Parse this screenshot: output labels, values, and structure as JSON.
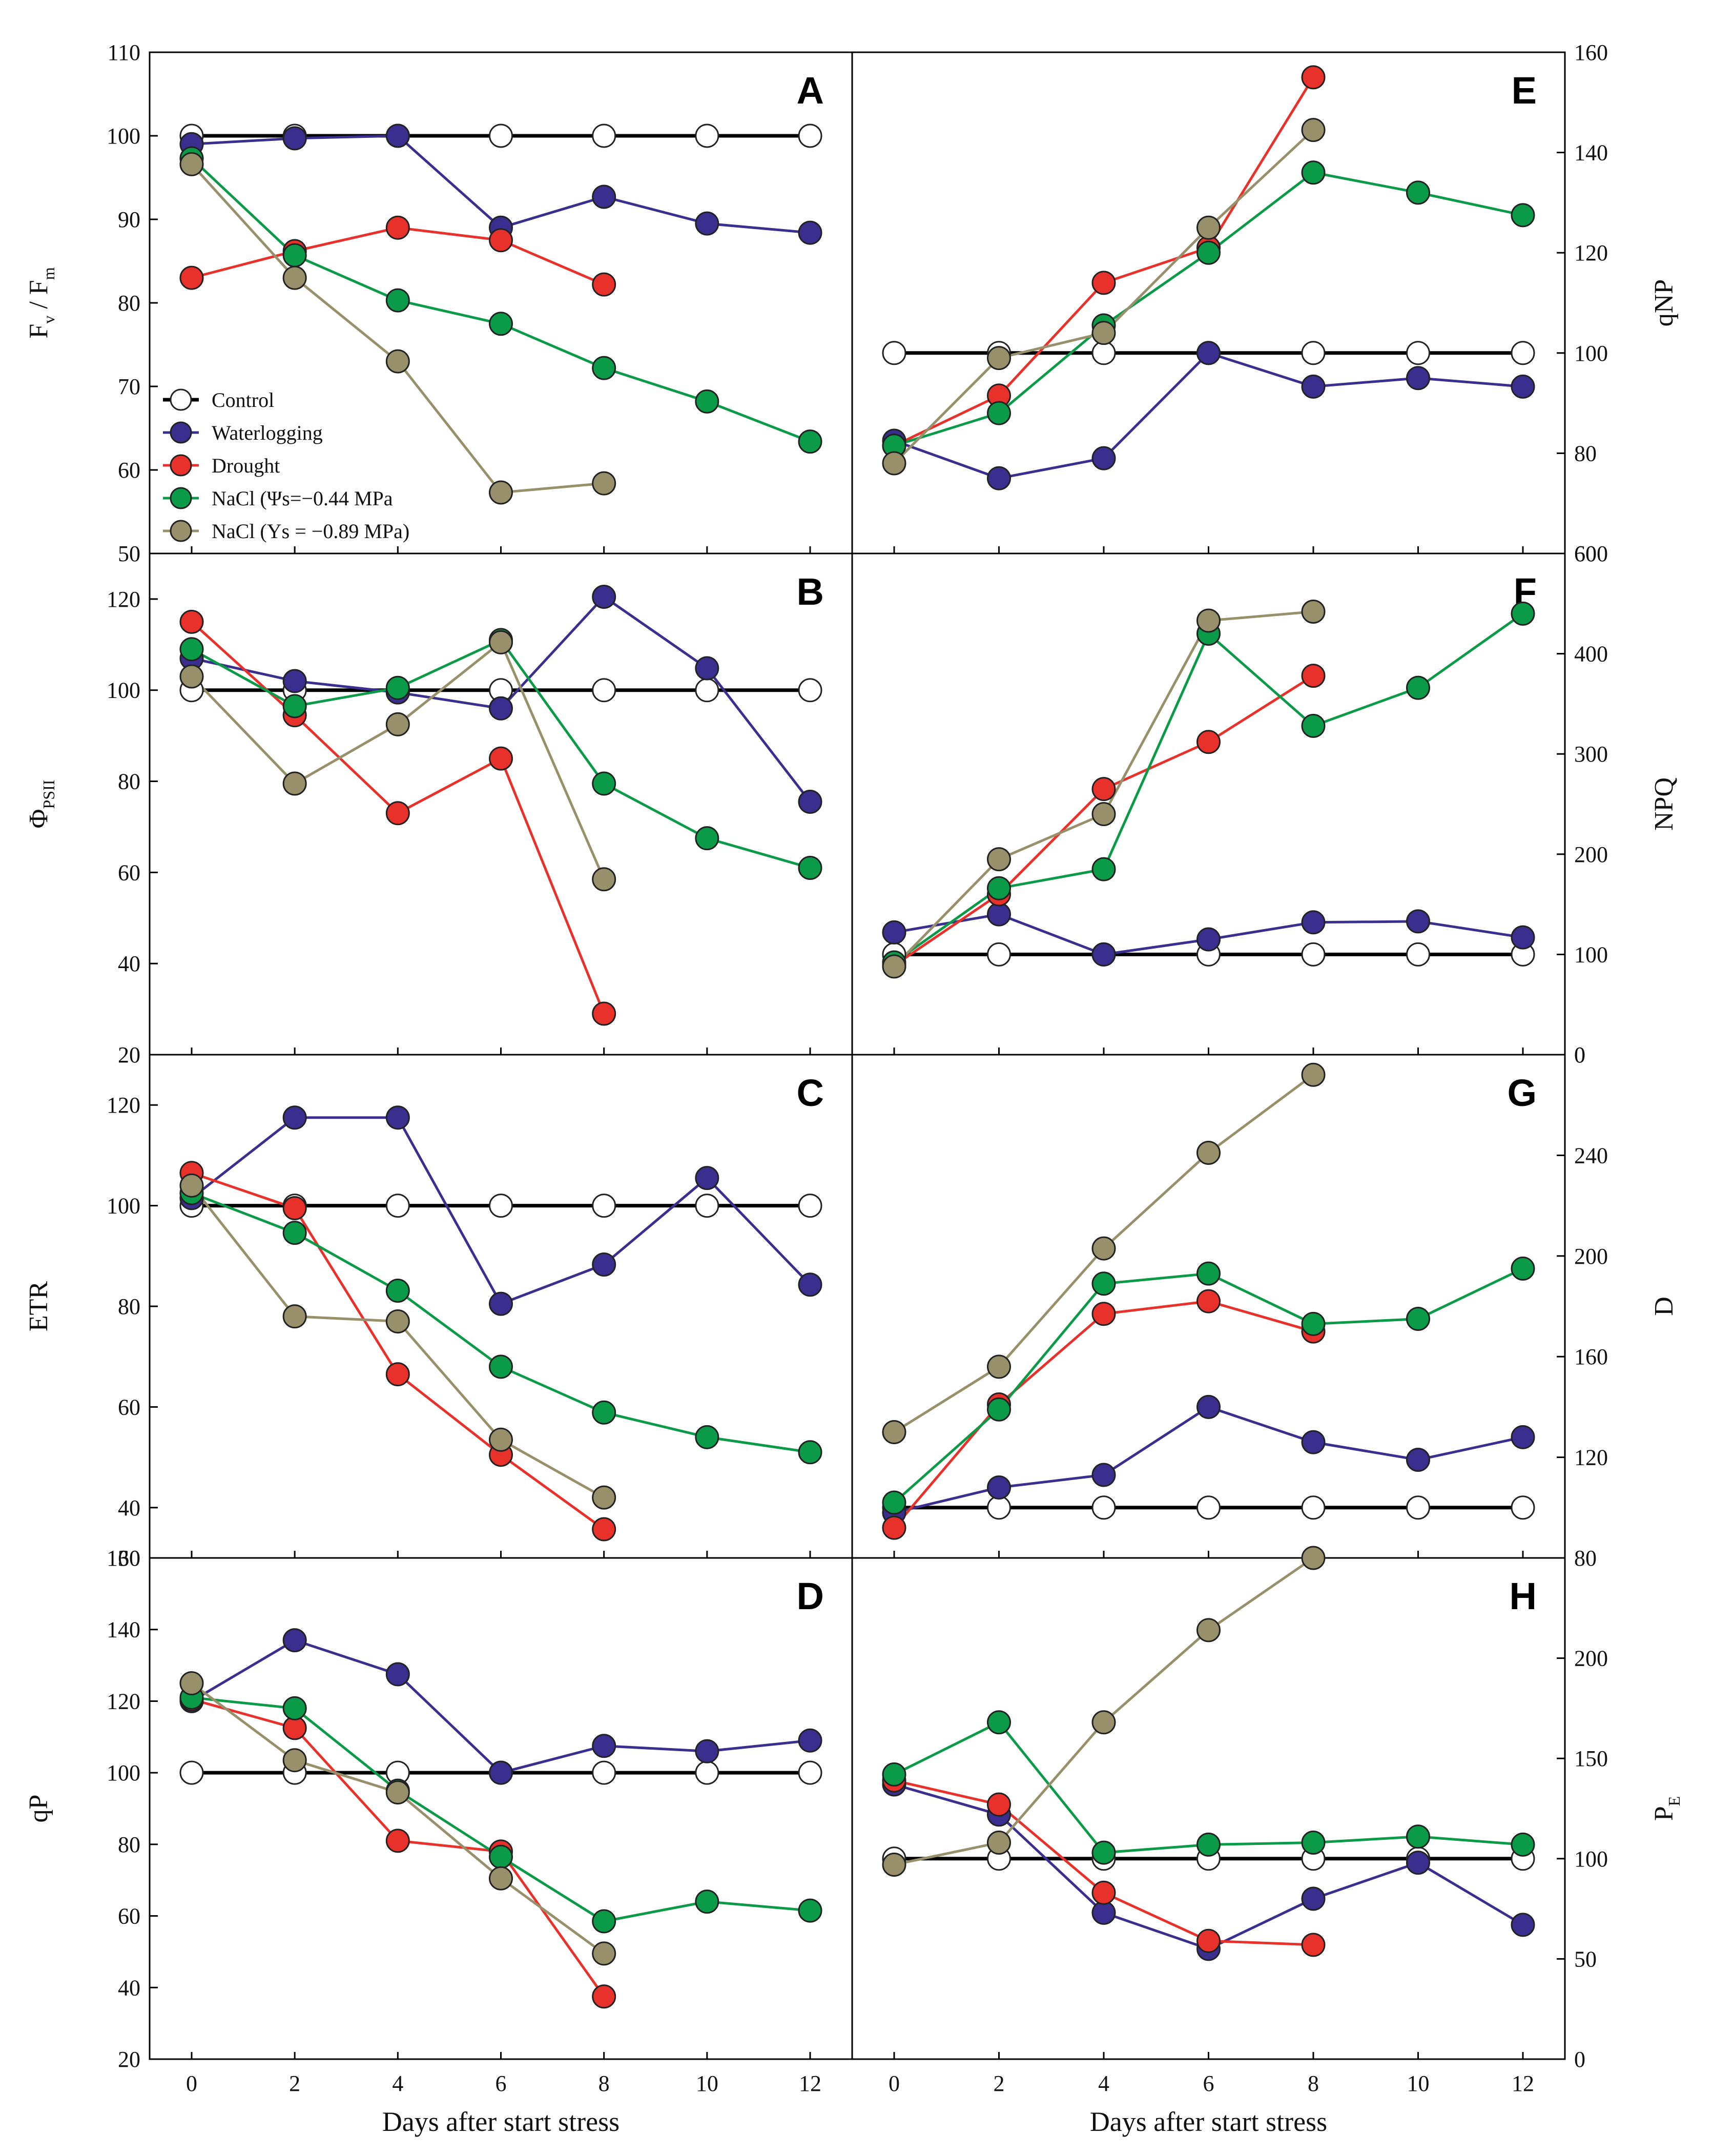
{
  "colors": {
    "control_fill": "#ffffff",
    "control_line": "#000000",
    "waterlogging": "#3a2f8f",
    "drought": "#e8312a",
    "nacl_low": "#0b9a48",
    "nacl_high": "#98906a"
  },
  "legend": {
    "items": [
      {
        "key": "control",
        "label": "Control"
      },
      {
        "key": "waterlogging",
        "label": "Waterlogging"
      },
      {
        "key": "drought",
        "label": "Drought"
      },
      {
        "key": "nacl_low",
        "label": "NaCl (Ψs=−0.44 MPa"
      },
      {
        "key": "nacl_high",
        "label": "NaCl (Ys = −0.89 MPa)"
      }
    ]
  },
  "chart_data": [
    {
      "panel": "A",
      "type": "line",
      "ylabel_main": "F",
      "ylabel_parts": [
        "F",
        "v",
        " / F",
        "m"
      ],
      "ylim": [
        50,
        110
      ],
      "yticks": [
        50,
        60,
        70,
        80,
        90,
        100,
        110
      ],
      "yaxis_side": "left",
      "x": [
        0,
        2,
        4,
        6,
        8,
        10,
        12
      ],
      "series": [
        {
          "key": "control",
          "name": "Control",
          "values": [
            100,
            100,
            100,
            100,
            100,
            100,
            100
          ]
        },
        {
          "key": "waterlogging",
          "name": "Waterlogging",
          "values": [
            99,
            99.7,
            100,
            89,
            92.7,
            89.5,
            88.4
          ]
        },
        {
          "key": "drought",
          "name": "Drought",
          "values": [
            83,
            86.2,
            89,
            87.5,
            82.2,
            null,
            null
          ]
        },
        {
          "key": "nacl_low",
          "name": "NaCl (Ψs=−0.44 MPa",
          "values": [
            97.3,
            85.7,
            80.3,
            77.5,
            72.2,
            68.2,
            63.4
          ]
        },
        {
          "key": "nacl_high",
          "name": "NaCl (Ys = −0.89 MPa)",
          "values": [
            96.6,
            83,
            73,
            57.3,
            58.4,
            null,
            null
          ]
        }
      ]
    },
    {
      "panel": "B",
      "type": "line",
      "ylabel_parts": [
        "Φ",
        "PSII"
      ],
      "ylim": [
        20,
        130
      ],
      "yticks": [
        20,
        40,
        60,
        80,
        100,
        120
      ],
      "yaxis_side": "left",
      "x": [
        0,
        2,
        4,
        6,
        8,
        10,
        12
      ],
      "series": [
        {
          "key": "control",
          "name": "Control",
          "values": [
            100,
            100,
            100,
            100,
            100,
            100,
            100
          ]
        },
        {
          "key": "waterlogging",
          "name": "Waterlogging",
          "values": [
            107,
            102,
            99.5,
            96,
            120.5,
            104.8,
            75.5
          ]
        },
        {
          "key": "drought",
          "name": "Drought",
          "values": [
            115,
            94.5,
            73,
            85,
            29,
            null,
            null
          ]
        },
        {
          "key": "nacl_low",
          "name": "NaCl (Ψs=−0.44 MPa",
          "values": [
            109,
            96.5,
            100.5,
            111,
            79.5,
            67.5,
            61
          ]
        },
        {
          "key": "nacl_high",
          "name": "NaCl (Ys = −0.89 MPa)",
          "values": [
            103,
            79.5,
            92.5,
            110.5,
            58.5,
            null,
            null
          ]
        }
      ]
    },
    {
      "panel": "C",
      "type": "line",
      "ylabel_parts": [
        "ETR"
      ],
      "ylim": [
        30,
        130
      ],
      "yticks": [
        40,
        60,
        80,
        100,
        120
      ],
      "bottom_tick_label": "30",
      "yaxis_side": "left",
      "x": [
        0,
        2,
        4,
        6,
        8,
        10,
        12
      ],
      "series": [
        {
          "key": "control",
          "name": "Control",
          "values": [
            100,
            100,
            100,
            100,
            100,
            100,
            100
          ]
        },
        {
          "key": "waterlogging",
          "name": "Waterlogging",
          "values": [
            101.5,
            117.5,
            117.5,
            80.5,
            88.3,
            105.5,
            84.3
          ]
        },
        {
          "key": "drought",
          "name": "Drought",
          "values": [
            106.5,
            99.5,
            66.5,
            50.5,
            35.7,
            null,
            null
          ]
        },
        {
          "key": "nacl_low",
          "name": "NaCl (Ψs=−0.44 MPa",
          "values": [
            102.5,
            94.6,
            83.1,
            68,
            58.9,
            54,
            51
          ]
        },
        {
          "key": "nacl_high",
          "name": "NaCl (Ys = −0.89 MPa)",
          "values": [
            104,
            78,
            77,
            53.5,
            42,
            null,
            null
          ]
        }
      ]
    },
    {
      "panel": "D",
      "type": "line",
      "ylabel_parts": [
        "qP"
      ],
      "ylim": [
        20,
        160
      ],
      "yticks": [
        20,
        40,
        60,
        80,
        100,
        120,
        140
      ],
      "top_tick_label": "160",
      "yaxis_side": "left",
      "x": [
        0,
        2,
        4,
        6,
        8,
        10,
        12
      ],
      "series": [
        {
          "key": "control",
          "name": "Control",
          "values": [
            100,
            100,
            100,
            100,
            100,
            100,
            100
          ]
        },
        {
          "key": "waterlogging",
          "name": "Waterlogging",
          "values": [
            120,
            137,
            127.5,
            100,
            107.5,
            106,
            109
          ]
        },
        {
          "key": "drought",
          "name": "Drought",
          "values": [
            120.5,
            112.5,
            81,
            78,
            37.5,
            null,
            null
          ]
        },
        {
          "key": "nacl_low",
          "name": "NaCl (Ψs=−0.44 MPa",
          "values": [
            121,
            118,
            95,
            76.5,
            58.5,
            64,
            61.5
          ]
        },
        {
          "key": "nacl_high",
          "name": "NaCl (Ys = −0.89 MPa)",
          "values": [
            125,
            103.5,
            94.5,
            70.5,
            49.5,
            null,
            null
          ]
        }
      ]
    },
    {
      "panel": "E",
      "type": "line",
      "ylabel_parts": [
        "qNP"
      ],
      "ylim": [
        60,
        160
      ],
      "yticks": [
        60,
        80,
        100,
        120,
        140,
        160
      ],
      "yaxis_side": "right",
      "x": [
        0,
        2,
        4,
        6,
        8,
        10,
        12
      ],
      "series": [
        {
          "key": "control",
          "name": "Control",
          "values": [
            100,
            100,
            100,
            100,
            100,
            100,
            100
          ]
        },
        {
          "key": "waterlogging",
          "name": "Waterlogging",
          "values": [
            82.5,
            75,
            79,
            100,
            93.3,
            95,
            93.3
          ]
        },
        {
          "key": "drought",
          "name": "Drought",
          "values": [
            81.5,
            91.5,
            114,
            121,
            155,
            null,
            null
          ]
        },
        {
          "key": "nacl_low",
          "name": "NaCl (Ψs=−0.44 MPa",
          "values": [
            81.5,
            88,
            105.5,
            120,
            136,
            132,
            127.5
          ]
        },
        {
          "key": "nacl_high",
          "name": "NaCl (Ys = −0.89 MPa)",
          "values": [
            78,
            99,
            104,
            125,
            144.5,
            null,
            null
          ]
        }
      ]
    },
    {
      "panel": "F",
      "type": "line",
      "ylabel_parts": [
        "NPQ"
      ],
      "ylim": [
        0,
        500
      ],
      "yticks": [
        0,
        100,
        200,
        300,
        400
      ],
      "top_tick_label": "600",
      "yaxis_side": "right",
      "x": [
        0,
        2,
        4,
        6,
        8,
        10,
        12
      ],
      "series": [
        {
          "key": "control",
          "name": "Control",
          "values": [
            100,
            100,
            100,
            100,
            100,
            100,
            100
          ]
        },
        {
          "key": "waterlogging",
          "name": "Waterlogging",
          "values": [
            122,
            140,
            100,
            115,
            132,
            133,
            117
          ]
        },
        {
          "key": "drought",
          "name": "Drought",
          "values": [
            89,
            160,
            265,
            312,
            378,
            null,
            null
          ]
        },
        {
          "key": "nacl_low",
          "name": "NaCl (Ψs=−0.44 MPa",
          "values": [
            92,
            166,
            185,
            420,
            328,
            366,
            440
          ]
        },
        {
          "key": "nacl_high",
          "name": "NaCl (Ys = −0.89 MPa)",
          "values": [
            88,
            195,
            240,
            433,
            442,
            null,
            null
          ]
        }
      ]
    },
    {
      "panel": "G",
      "type": "line",
      "ylabel_parts": [
        "D"
      ],
      "ylim": [
        80,
        280
      ],
      "yticks": [
        120,
        160,
        200,
        240
      ],
      "top_tick_label": "0",
      "yaxis_side": "right",
      "x": [
        0,
        2,
        4,
        6,
        8,
        10,
        12
      ],
      "series": [
        {
          "key": "control",
          "name": "Control",
          "values": [
            100,
            100,
            100,
            100,
            100,
            100,
            100
          ]
        },
        {
          "key": "waterlogging",
          "name": "Waterlogging",
          "values": [
            98,
            108,
            113,
            140,
            126,
            119,
            128
          ]
        },
        {
          "key": "drought",
          "name": "Drought",
          "values": [
            92,
            141,
            177,
            182,
            170,
            null,
            null
          ]
        },
        {
          "key": "nacl_low",
          "name": "NaCl (Ψs=−0.44 MPa",
          "values": [
            102,
            139,
            189,
            193,
            173,
            175,
            195
          ]
        },
        {
          "key": "nacl_high",
          "name": "NaCl (Ys = −0.89 MPa)",
          "values": [
            130,
            156,
            203,
            241,
            272,
            null,
            null
          ]
        }
      ]
    },
    {
      "panel": "H",
      "type": "line",
      "ylabel_parts": [
        "P",
        "E"
      ],
      "ylim": [
        0,
        250
      ],
      "yticks": [
        0,
        50,
        100,
        150,
        200
      ],
      "top_tick_label": "80",
      "yaxis_side": "right",
      "x": [
        0,
        2,
        4,
        6,
        8,
        10,
        12
      ],
      "series": [
        {
          "key": "control",
          "name": "Control",
          "values": [
            100,
            100,
            100,
            100,
            100,
            100,
            100
          ]
        },
        {
          "key": "waterlogging",
          "name": "Waterlogging",
          "values": [
            137,
            122,
            73,
            55,
            80,
            98,
            67
          ]
        },
        {
          "key": "drought",
          "name": "Drought",
          "values": [
            139,
            127,
            83,
            59,
            57,
            null,
            null
          ]
        },
        {
          "key": "nacl_low",
          "name": "NaCl (Ψs=−0.44 MPa",
          "values": [
            142,
            168,
            103,
            107,
            108,
            111,
            107
          ]
        },
        {
          "key": "nacl_high",
          "name": "NaCl (Ys = −0.89 MPa)",
          "values": [
            97,
            108,
            168,
            214,
            250,
            null,
            null
          ]
        }
      ]
    }
  ],
  "x_axis": {
    "ticks": [
      0,
      2,
      4,
      6,
      8,
      10,
      12
    ],
    "title_left": "Days after start stress",
    "title_right": "Days after start stress"
  }
}
